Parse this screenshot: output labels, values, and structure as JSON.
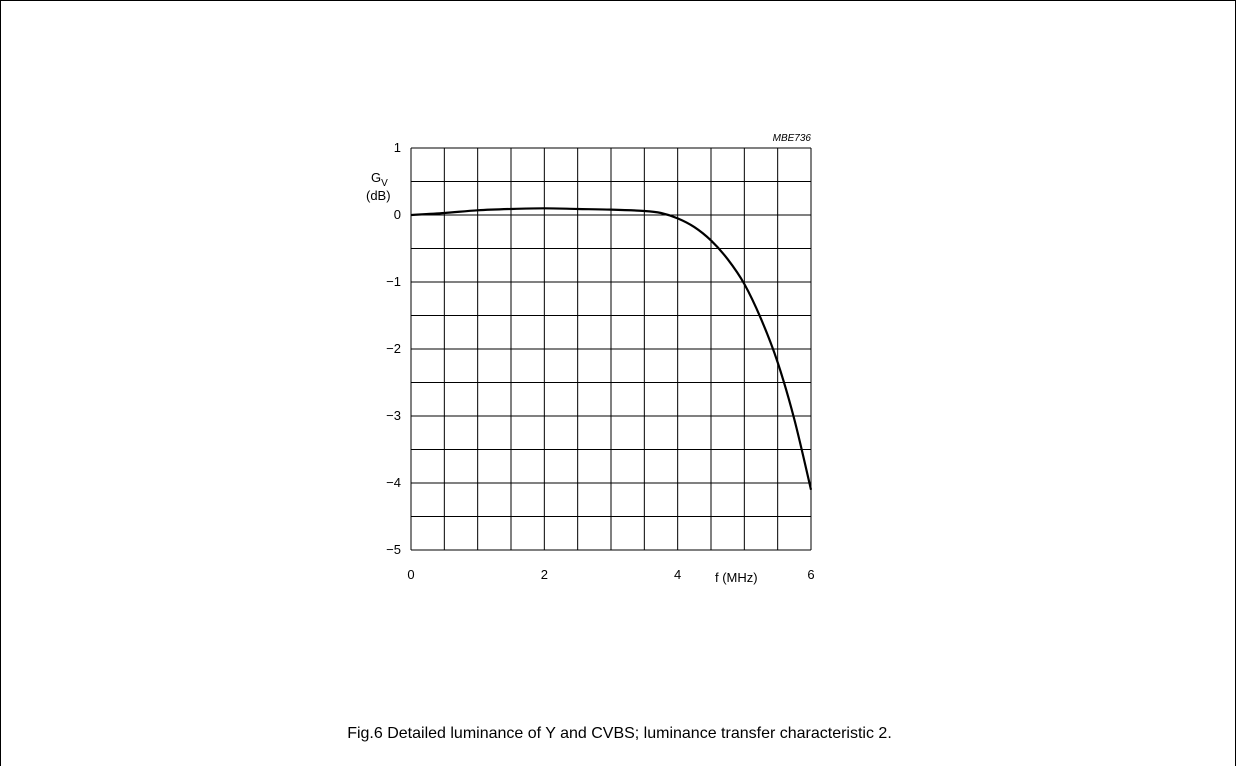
{
  "chart_data": {
    "type": "line",
    "code": "MBE736",
    "ylabel_main": "G",
    "ylabel_sub": "V",
    "ylabel_unit": "(dB)",
    "xlabel": "f (MHz)",
    "xlim": [
      0,
      6
    ],
    "ylim": [
      -5,
      1
    ],
    "x_ticks": [
      "0",
      "2",
      "4",
      "6"
    ],
    "y_ticks": [
      "1",
      "0",
      "−1",
      "−2",
      "−3",
      "−4",
      "−5"
    ],
    "grid": true,
    "series": [
      {
        "x": [
          0,
          0.5,
          1,
          1.5,
          2,
          2.5,
          3,
          3.5,
          3.75,
          4,
          4.25,
          4.5,
          4.75,
          5,
          5.25,
          5.5,
          5.75,
          6
        ],
        "y": [
          0,
          0.03,
          0.07,
          0.09,
          0.1,
          0.09,
          0.08,
          0.06,
          0.03,
          -0.05,
          -0.18,
          -0.38,
          -0.66,
          -1.03,
          -1.55,
          -2.2,
          -3.05,
          -4.1
        ]
      }
    ]
  },
  "caption": "Fig.6  Detailed luminance of Y and CVBS; luminance transfer characteristic 2."
}
